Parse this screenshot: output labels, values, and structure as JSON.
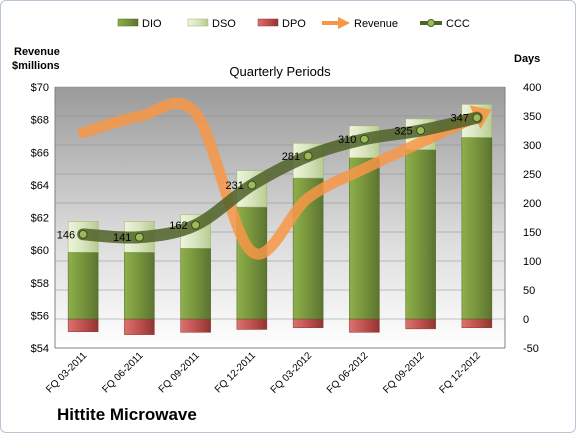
{
  "chart_data": {
    "type": "bar",
    "title": "Quarterly Periods",
    "company": "Hittite Microwave",
    "left_axis_label": [
      "Revenue",
      "$millions"
    ],
    "right_axis_label": "Days",
    "left_ylim": [
      54,
      70
    ],
    "left_ticks": [
      "$54",
      "$56",
      "$58",
      "$60",
      "$62",
      "$64",
      "$66",
      "$68",
      "$70"
    ],
    "right_ylim": [
      -50,
      400
    ],
    "right_ticks": [
      "-50",
      "0",
      "50",
      "100",
      "150",
      "200",
      "250",
      "300",
      "350",
      "400"
    ],
    "categories": [
      "FQ 03-2011",
      "FQ 06-2011",
      "FQ 09-2011",
      "FQ 12-2011",
      "FQ 03-2012",
      "FQ 06-2012",
      "FQ 09-2012",
      "FQ 12-2012"
    ],
    "legend": [
      "DIO",
      "DSO",
      "DPO",
      "Revenue",
      "CCC"
    ],
    "series": [
      {
        "name": "DIO",
        "axis": "right",
        "values": [
          115,
          115,
          122,
          193,
          243,
          278,
          292,
          313
        ]
      },
      {
        "name": "DSO",
        "axis": "right",
        "values": [
          53,
          53,
          58,
          63,
          60,
          55,
          53,
          57
        ]
      },
      {
        "name": "DPO",
        "axis": "right",
        "values": [
          -22,
          -27,
          -23,
          -18,
          -15,
          -23,
          -17,
          -15
        ]
      },
      {
        "name": "Revenue",
        "axis": "left",
        "values": [
          67.2,
          68.2,
          68.4,
          59.9,
          63.2,
          65.0,
          66.6,
          68.2
        ]
      },
      {
        "name": "CCC",
        "axis": "right",
        "values": [
          146,
          141,
          162,
          231,
          281,
          310,
          325,
          347
        ]
      }
    ],
    "data_labels": [
      "146",
      "141",
      "162",
      "231",
      "281",
      "310",
      "325",
      "347"
    ],
    "colors": {
      "DIO": "#77933c",
      "DSO": "#d7e4bd",
      "DPO": "#c0504d",
      "Revenue": "#f79646",
      "CCC": "#4f6228"
    }
  }
}
